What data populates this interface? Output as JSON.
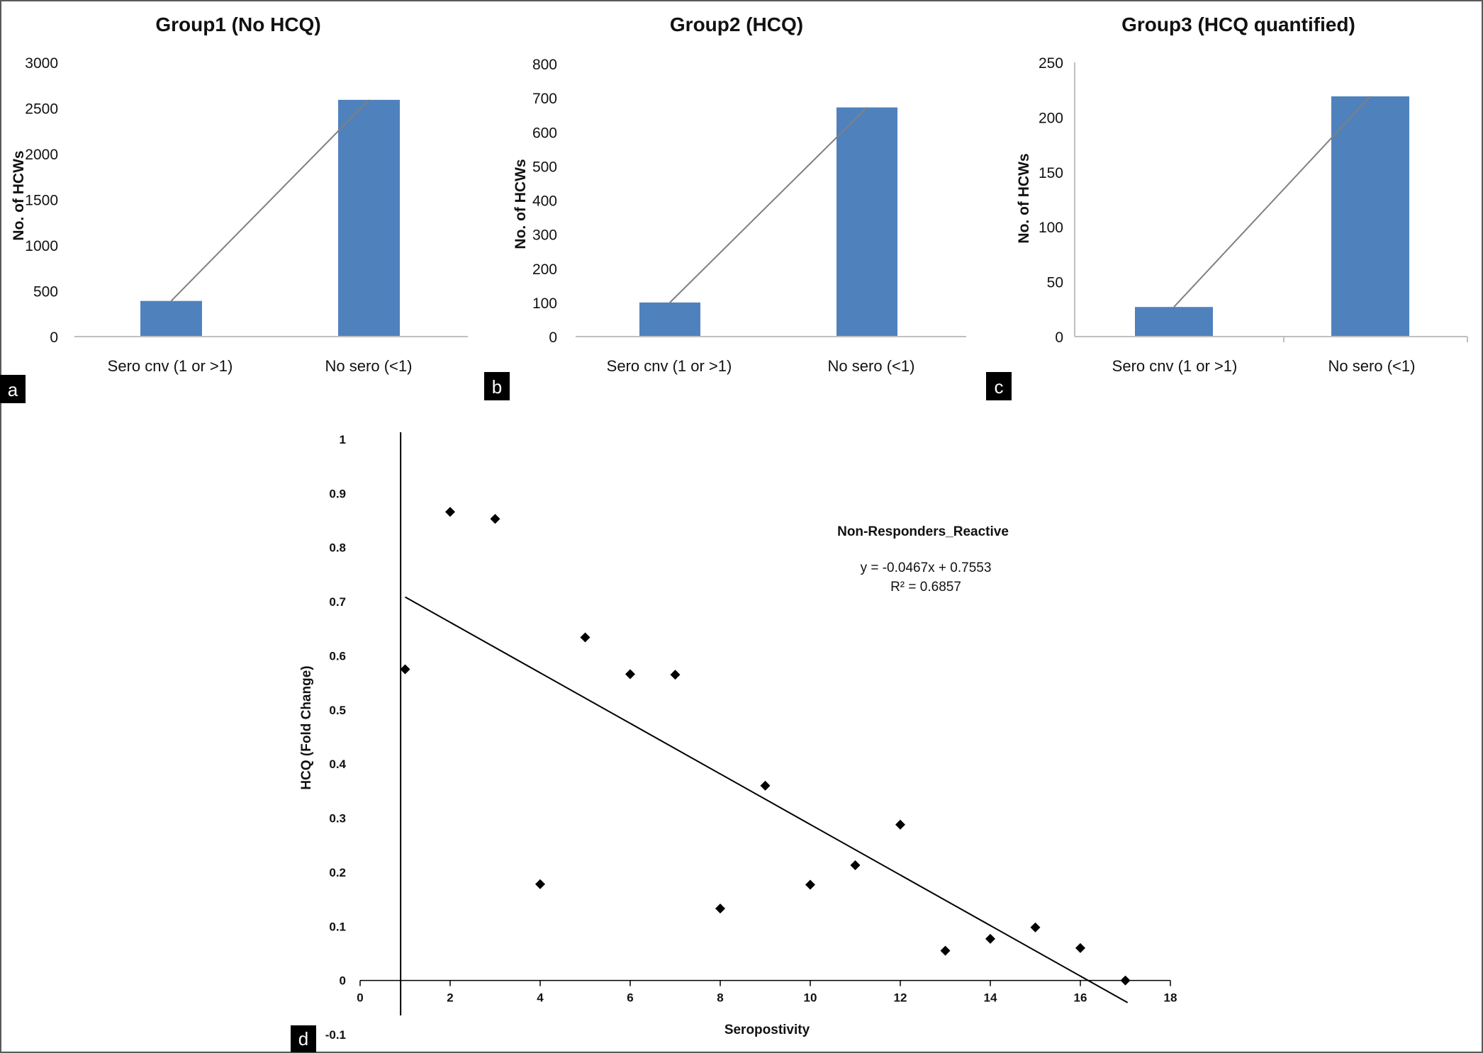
{
  "chart_data": [
    {
      "type": "bar",
      "panel_label": "a",
      "title": "Group1 (No HCQ)",
      "ylabel": "No. of HCWs",
      "xlabel": "",
      "categories": [
        "Sero cnv (1 or >1)",
        "No sero (<1)"
      ],
      "values": [
        390,
        2590
      ],
      "ylim": [
        0,
        3000
      ],
      "yticks": [
        "0",
        "500",
        "1000",
        "1500",
        "2000",
        "2500",
        "3000"
      ],
      "connector_line": true
    },
    {
      "type": "bar",
      "panel_label": "b",
      "title": "Group2 (HCQ)",
      "ylabel": "No. of HCWs",
      "xlabel": "",
      "categories": [
        "Sero cnv (1 or >1)",
        "No sero (<1)"
      ],
      "values": [
        100,
        672
      ],
      "ylim": [
        0,
        800
      ],
      "yticks": [
        "0",
        "100",
        "200",
        "300",
        "400",
        "500",
        "600",
        "700",
        "800"
      ],
      "connector_line": true
    },
    {
      "type": "bar",
      "panel_label": "c",
      "title": "Group3 (HCQ quantified)",
      "ylabel": "No. of HCWs",
      "xlabel": "",
      "categories": [
        "Sero cnv (1 or >1)",
        "No sero (<1)"
      ],
      "values": [
        27,
        219
      ],
      "ylim": [
        0,
        250
      ],
      "yticks": [
        "0",
        "50",
        "100",
        "150",
        "200",
        "250"
      ],
      "connector_line": true
    },
    {
      "type": "scatter",
      "panel_label": "d",
      "title": "",
      "xlabel": "Seropostivity",
      "ylabel": "HCQ (Fold Change)",
      "xlim": [
        0,
        18
      ],
      "ylim": [
        -0.1,
        1
      ],
      "xticks": [
        "0",
        "2",
        "4",
        "6",
        "8",
        "10",
        "12",
        "14",
        "16",
        "18"
      ],
      "yticks": [
        "-0.1",
        "0",
        "0.1",
        "0.2",
        "0.3",
        "0.4",
        "0.5",
        "0.6",
        "0.7",
        "0.8",
        "0.9",
        "1"
      ],
      "x": [
        1,
        2,
        3,
        4,
        5,
        6,
        7,
        8,
        9,
        10,
        11,
        12,
        13,
        14,
        15,
        16,
        17
      ],
      "y": [
        0.575,
        0.866,
        0.853,
        0.178,
        0.634,
        0.566,
        0.565,
        0.133,
        0.36,
        0.177,
        0.213,
        0.288,
        0.055,
        0.077,
        0.098,
        0.06,
        0.0
      ],
      "trendline": {
        "slope": -0.0467,
        "intercept": 0.7553
      },
      "vertical_line_x": 0.9,
      "annotation": {
        "title": "Non-Responders_Reactive",
        "equation": "y = -0.0467x + 0.7553",
        "r2": "R² = 0.6857"
      },
      "marker": "diamond"
    }
  ],
  "colors": {
    "bar_fill": "#4f81bd",
    "connector_line": "#808080",
    "axis_line": "#bfbfbf",
    "marker": "#000000",
    "badge_bg": "#000000",
    "badge_text": "#ffffff"
  }
}
